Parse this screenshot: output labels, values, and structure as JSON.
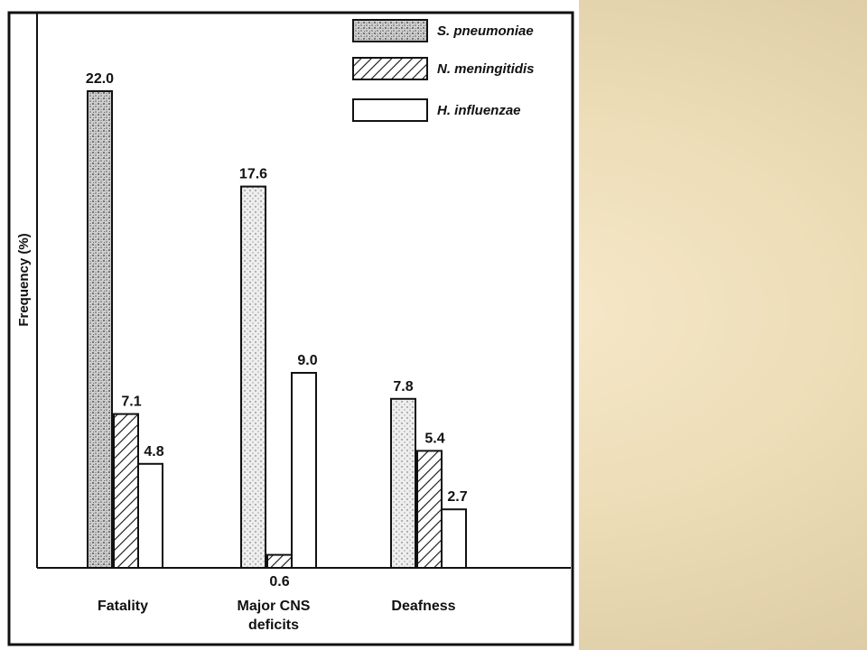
{
  "chart_data": {
    "type": "bar",
    "title": "",
    "xlabel": "",
    "ylabel": "Frequency (%)",
    "categories": [
      [
        "Fatality"
      ],
      [
        "Major CNS",
        "deficits"
      ],
      [
        "Deafness"
      ]
    ],
    "series": [
      {
        "name": "S. pneumoniae",
        "values": [
          22.0,
          17.6,
          7.8
        ],
        "labels": [
          "22.0",
          "17.6",
          "7.8"
        ],
        "pattern": "dots"
      },
      {
        "name": "N. meningitidis",
        "values": [
          7.1,
          0.6,
          5.4
        ],
        "labels": [
          "7.1",
          "0.6",
          "5.4"
        ],
        "pattern": "hatch"
      },
      {
        "name": "H. influenzae",
        "values": [
          4.8,
          9.0,
          2.7
        ],
        "labels": [
          "4.8",
          "9.0",
          "2.7"
        ],
        "pattern": "none"
      }
    ],
    "ylim": [
      0,
      24.3
    ],
    "grid": false,
    "legend_position": "top-right"
  }
}
